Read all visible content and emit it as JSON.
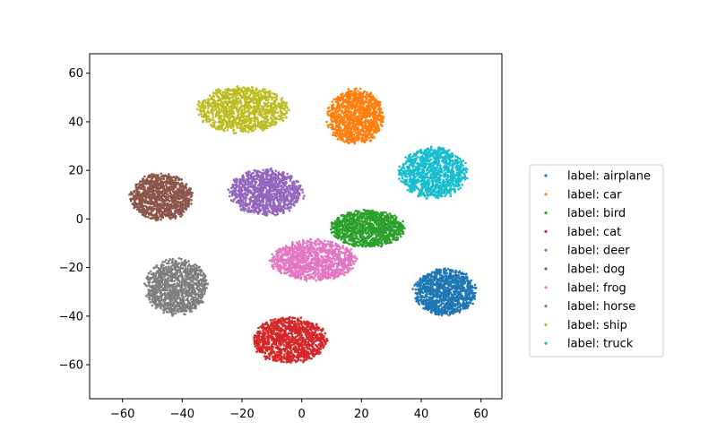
{
  "chart_data": {
    "type": "scatter",
    "title": "",
    "xlabel": "",
    "ylabel": "",
    "xlim": [
      -71,
      67
    ],
    "ylim": [
      -74,
      68
    ],
    "xticks": [
      -60,
      -40,
      -20,
      0,
      20,
      40,
      60
    ],
    "yticks": [
      -60,
      -40,
      -20,
      0,
      20,
      40,
      60
    ],
    "grid": false,
    "legend_position": "center-right",
    "series": [
      {
        "name": "label: airplane",
        "color": "#1f77b4",
        "center": [
          48,
          -30
        ],
        "spread": [
          11,
          10
        ]
      },
      {
        "name": "label: car",
        "color": "#ff7f0e",
        "center": [
          18,
          42
        ],
        "spread": [
          10,
          12
        ]
      },
      {
        "name": "label: bird",
        "color": "#2ca02c",
        "center": [
          22,
          -4
        ],
        "spread": [
          13,
          8
        ]
      },
      {
        "name": "label: cat",
        "color": "#d62728",
        "center": [
          -4,
          -50
        ],
        "spread": [
          13,
          10
        ]
      },
      {
        "name": "label: deer",
        "color": "#9467bd",
        "center": [
          -12,
          11
        ],
        "spread": [
          13,
          10
        ]
      },
      {
        "name": "label: dog",
        "color": "#8c564b",
        "center": [
          -47,
          9
        ],
        "spread": [
          11,
          10
        ]
      },
      {
        "name": "label: frog",
        "color": "#e377c2",
        "center": [
          4,
          -17
        ],
        "spread": [
          15,
          9
        ]
      },
      {
        "name": "label: horse",
        "color": "#7f7f7f",
        "center": [
          -42,
          -28
        ],
        "spread": [
          11,
          12
        ]
      },
      {
        "name": "label: ship",
        "color": "#bcbd22",
        "center": [
          -20,
          45
        ],
        "spread": [
          16,
          10
        ]
      },
      {
        "name": "label: truck",
        "color": "#17becf",
        "center": [
          44,
          19
        ],
        "spread": [
          12,
          11
        ]
      }
    ]
  }
}
